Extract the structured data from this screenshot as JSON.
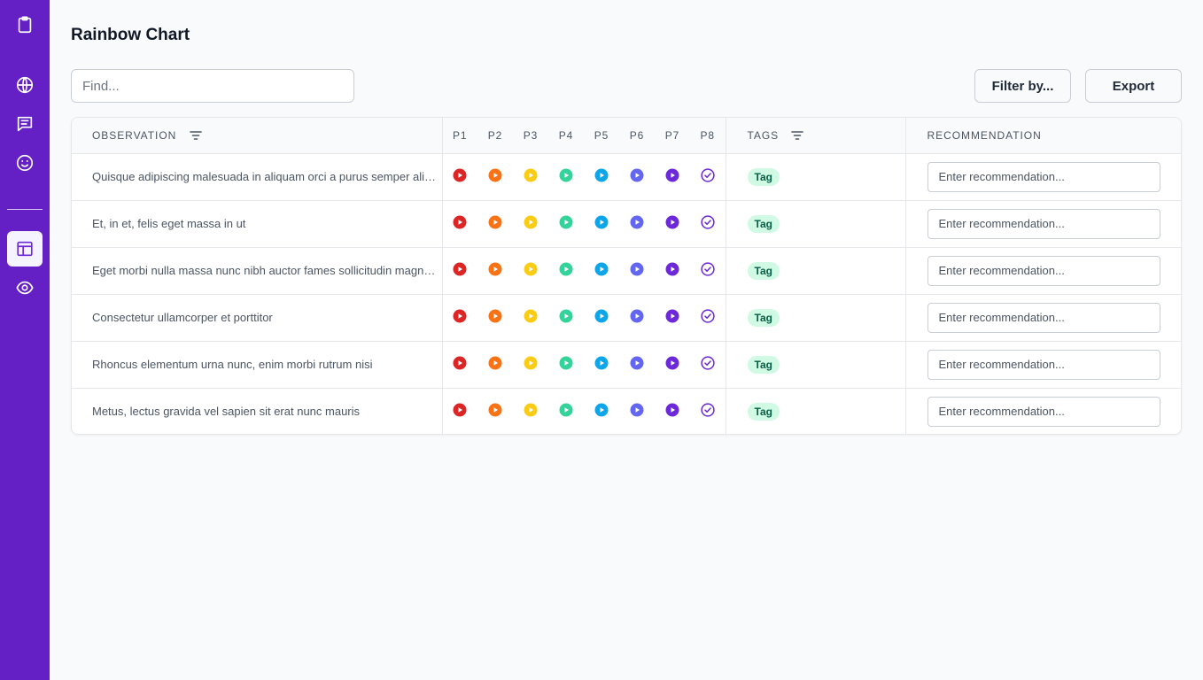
{
  "page": {
    "title": "Rainbow Chart"
  },
  "search": {
    "placeholder": "Find..."
  },
  "toolbar": {
    "filter_label": "Filter by...",
    "export_label": "Export"
  },
  "sidebar": {
    "items": [
      {
        "name": "clipboard-icon",
        "active": false
      },
      {
        "name": "globe-icon",
        "active": false
      },
      {
        "name": "chat-icon",
        "active": false
      },
      {
        "name": "smiley-icon",
        "active": false
      },
      {
        "name": "table-icon",
        "active": true
      },
      {
        "name": "eye-icon",
        "active": false
      }
    ]
  },
  "table": {
    "headers": {
      "observation": "OBSERVATION",
      "participants": [
        "P1",
        "P2",
        "P3",
        "P4",
        "P5",
        "P6",
        "P7",
        "P8"
      ],
      "tags": "TAGS",
      "recommendation": "RECOMMENDATION"
    },
    "participant_colors": [
      "#dc2626",
      "#f97316",
      "#facc15",
      "#34d399",
      "#0ea5e9",
      "#6366f1",
      "#6d28d9",
      "#6d28d9"
    ],
    "participant_icons": [
      "play-circle-icon",
      "play-circle-icon",
      "play-circle-icon",
      "play-circle-icon",
      "play-circle-icon",
      "play-circle-icon",
      "play-circle-icon",
      "check-circle-icon"
    ],
    "rows": [
      {
        "observation": "Quisque adipiscing malesuada in aliquam orci a purus semper aliquam",
        "tag": "Tag",
        "rec_placeholder": "Enter recommendation..."
      },
      {
        "observation": "Et, in et, felis eget massa in ut",
        "tag": "Tag",
        "rec_placeholder": "Enter recommendation..."
      },
      {
        "observation": "Eget morbi nulla massa nunc nibh auctor fames sollicitudin magna nunc",
        "tag": "Tag",
        "rec_placeholder": "Enter recommendation..."
      },
      {
        "observation": "Consectetur ullamcorper et porttitor",
        "tag": "Tag",
        "rec_placeholder": "Enter recommendation..."
      },
      {
        "observation": "Rhoncus elementum urna nunc, enim morbi rutrum nisi",
        "tag": "Tag",
        "rec_placeholder": "Enter recommendation..."
      },
      {
        "observation": "Metus, lectus gravida vel sapien sit erat nunc mauris",
        "tag": "Tag",
        "rec_placeholder": "Enter recommendation..."
      }
    ]
  }
}
